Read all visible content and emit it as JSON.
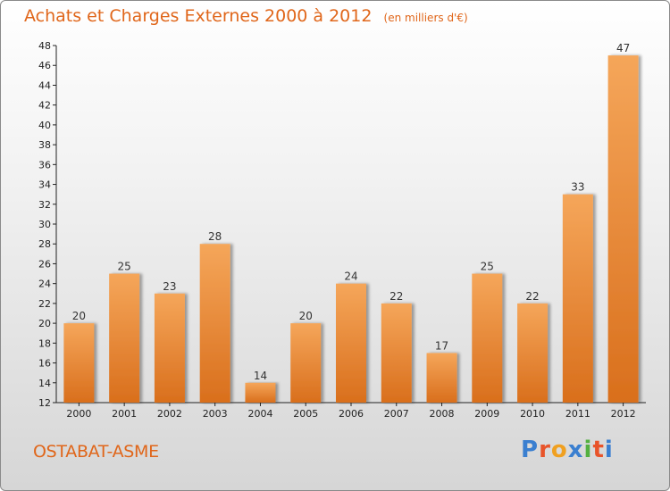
{
  "title": "Achats et Charges Externes 2000 à 2012",
  "unit": "(en milliers d'€)",
  "commune": "OSTABAT-ASME",
  "logo": {
    "text": "Proxiti",
    "colors": [
      "#3a7fd0",
      "#e8542a",
      "#f0a020",
      "#3a7fd0",
      "#54b040",
      "#e8542a",
      "#3a7fd0"
    ]
  },
  "chart_data": {
    "type": "bar",
    "categories": [
      "2000",
      "2001",
      "2002",
      "2003",
      "2004",
      "2005",
      "2006",
      "2007",
      "2008",
      "2009",
      "2010",
      "2011",
      "2012"
    ],
    "values": [
      20,
      25,
      23,
      28,
      14,
      20,
      24,
      22,
      17,
      25,
      22,
      33,
      47
    ],
    "ylim": [
      12,
      48
    ],
    "yticks": [
      12,
      14,
      16,
      18,
      20,
      22,
      24,
      26,
      28,
      30,
      32,
      34,
      36,
      38,
      40,
      42,
      44,
      46,
      48
    ],
    "grid": false,
    "colors": {
      "bar_light": "#f5a65a",
      "bar_dark": "#d96f1c",
      "axis": "#222222"
    }
  }
}
